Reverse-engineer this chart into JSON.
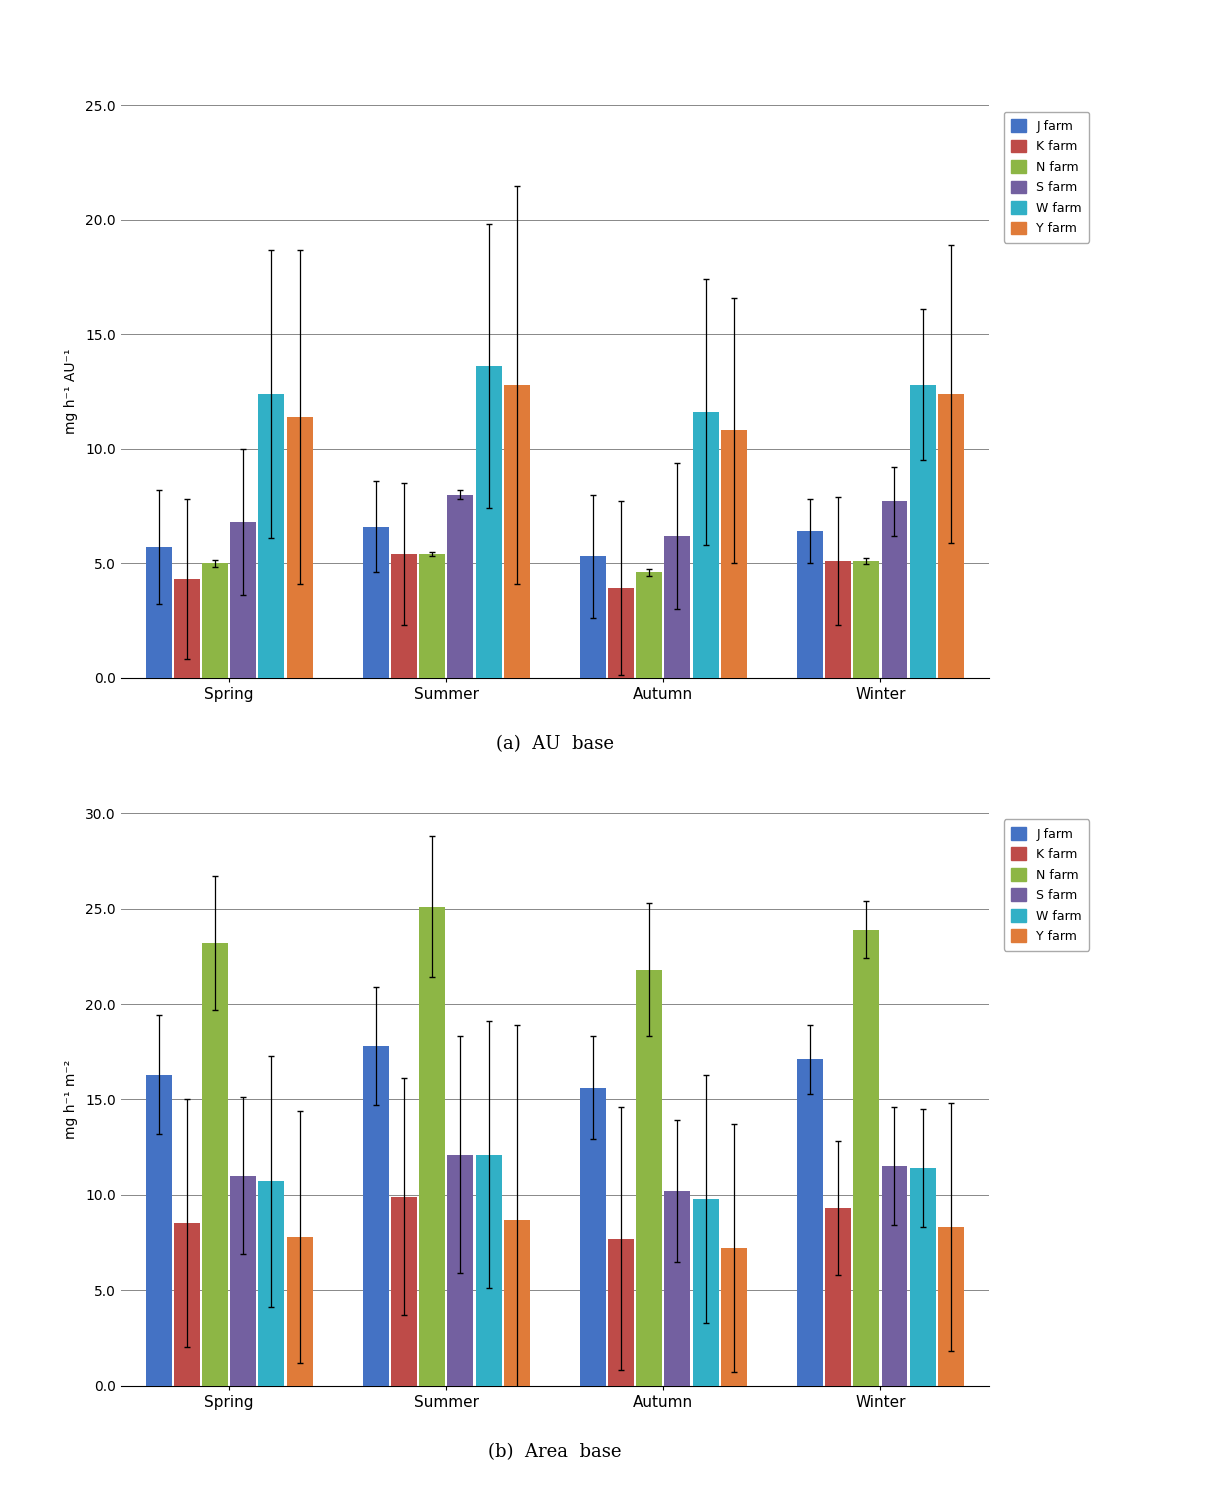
{
  "seasons": [
    "Spring",
    "Summer",
    "Autumn",
    "Winter"
  ],
  "farms": [
    "J farm",
    "K farm",
    "N farm",
    "S farm",
    "W farm",
    "Y farm"
  ],
  "colors": [
    "#4472C4",
    "#BE4B48",
    "#8DB645",
    "#7360A0",
    "#31B0C6",
    "#E07B39"
  ],
  "au_values": [
    [
      5.7,
      4.3,
      5.0,
      6.8,
      12.4,
      11.4
    ],
    [
      6.6,
      5.4,
      5.4,
      8.0,
      13.6,
      12.8
    ],
    [
      5.3,
      3.9,
      4.6,
      6.2,
      11.6,
      10.8
    ],
    [
      6.4,
      5.1,
      5.1,
      7.7,
      12.8,
      12.4
    ]
  ],
  "au_errors": [
    [
      2.5,
      3.5,
      0.15,
      3.2,
      6.3,
      7.3
    ],
    [
      2.0,
      3.1,
      0.1,
      0.2,
      6.2,
      8.7
    ],
    [
      2.7,
      3.8,
      0.15,
      3.2,
      5.8,
      5.8
    ],
    [
      1.4,
      2.8,
      0.15,
      1.5,
      3.3,
      6.5
    ]
  ],
  "au_ylim": [
    0,
    25.0
  ],
  "au_yticks": [
    0.0,
    5.0,
    10.0,
    15.0,
    20.0,
    25.0
  ],
  "au_ylabel": "mg h⁻¹ AU⁻¹",
  "au_xlabel": "(a)  AU  base",
  "area_values": [
    [
      16.3,
      8.5,
      23.2,
      11.0,
      10.7,
      7.8
    ],
    [
      17.8,
      9.9,
      25.1,
      12.1,
      12.1,
      8.7
    ],
    [
      15.6,
      7.7,
      21.8,
      10.2,
      9.8,
      7.2
    ],
    [
      17.1,
      9.3,
      23.9,
      11.5,
      11.4,
      8.3
    ]
  ],
  "area_errors": [
    [
      3.1,
      6.5,
      3.5,
      4.1,
      6.6,
      6.6
    ],
    [
      3.1,
      6.2,
      3.7,
      6.2,
      7.0,
      10.2
    ],
    [
      2.7,
      6.9,
      3.5,
      3.7,
      6.5,
      6.5
    ],
    [
      1.8,
      3.5,
      1.5,
      3.1,
      3.1,
      6.5
    ]
  ],
  "area_ylim": [
    0,
    30.0
  ],
  "area_yticks": [
    0.0,
    5.0,
    10.0,
    15.0,
    20.0,
    25.0,
    30.0
  ],
  "area_ylabel": "mg h⁻¹ m⁻²",
  "area_xlabel": "(b)  Area  base"
}
